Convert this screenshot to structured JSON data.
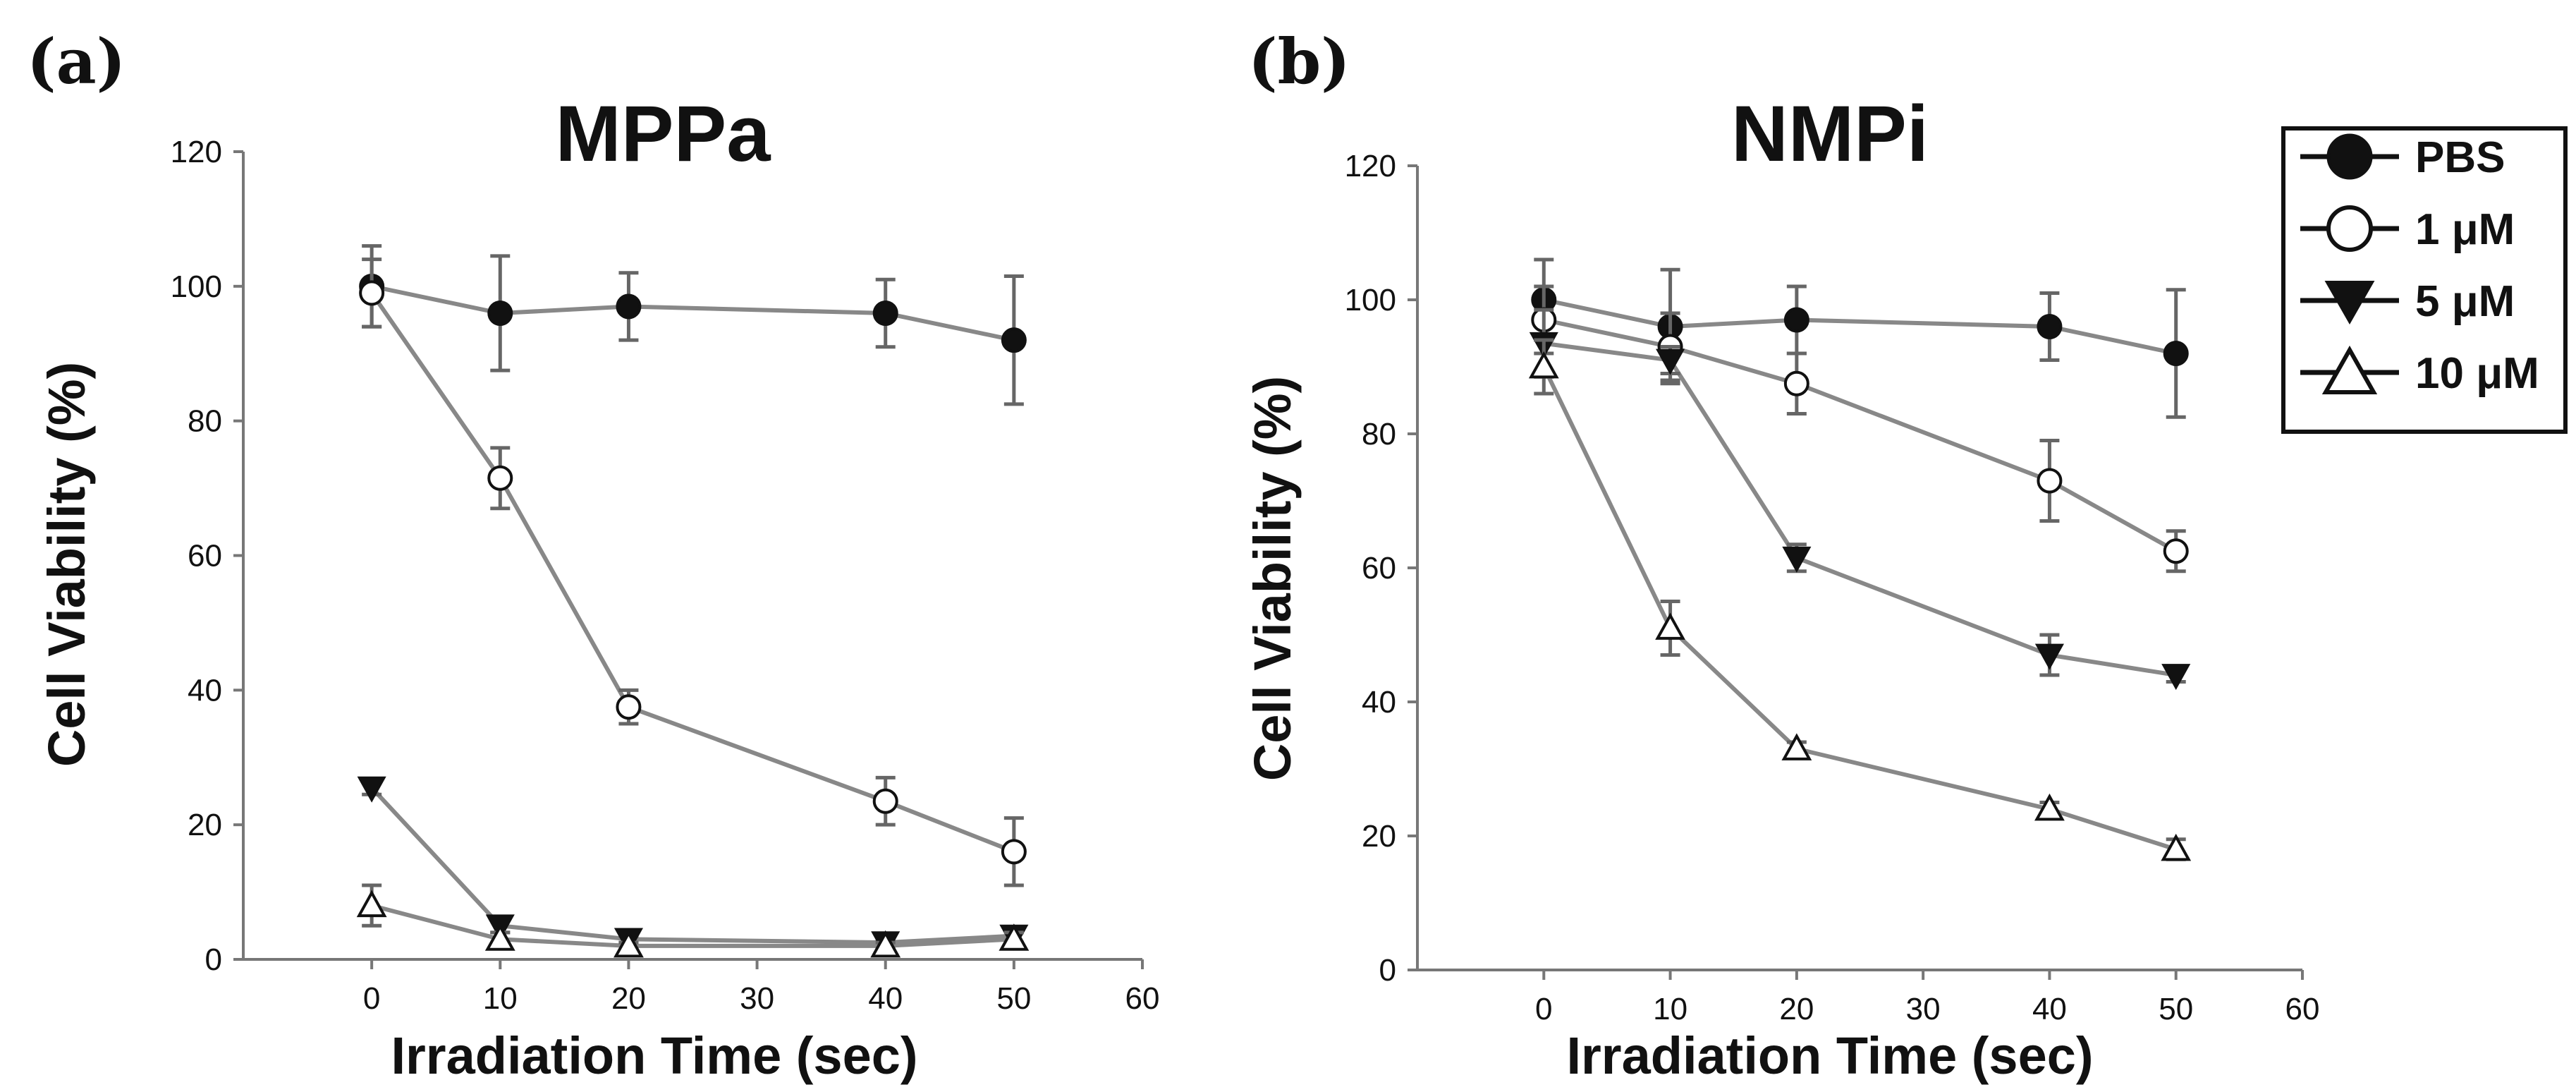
{
  "colors": {
    "axis": "#777777",
    "line": "#888888",
    "marker": "#111111",
    "error": "#666666"
  },
  "legend": {
    "entries": [
      {
        "name": "PBS",
        "marker": "filled-circle"
      },
      {
        "name": "1 μM",
        "marker": "open-circle"
      },
      {
        "name": "5 μM",
        "marker": "filled-triangle-down"
      },
      {
        "name": "10 μM",
        "marker": "open-triangle-up"
      }
    ]
  },
  "chart_data": [
    {
      "panel_label": "(a)",
      "type": "line",
      "title": "MPPa",
      "xlabel": "Irradiation Time (sec)",
      "ylabel": "Cell Viability (%)",
      "xlim": [
        -10,
        60
      ],
      "ylim": [
        0,
        120
      ],
      "xticks": [
        0,
        10,
        20,
        30,
        40,
        50,
        60
      ],
      "yticks": [
        0,
        20,
        40,
        60,
        80,
        100,
        120
      ],
      "x": [
        0,
        10,
        20,
        40,
        50
      ],
      "series": [
        {
          "name": "PBS",
          "marker": "filled-circle",
          "values": [
            100,
            96,
            97,
            96,
            92
          ],
          "errors": [
            6,
            8.5,
            5,
            5,
            9.5
          ]
        },
        {
          "name": "1 μM",
          "marker": "open-circle",
          "values": [
            99,
            71.5,
            37.5,
            23.5,
            16
          ],
          "errors": [
            5,
            4.5,
            2.5,
            3.5,
            5
          ]
        },
        {
          "name": "5 μM",
          "marker": "filled-triangle-down",
          "values": [
            25.5,
            5,
            3,
            2.5,
            3.5
          ],
          "errors": [
            1,
            1,
            0.5,
            0.5,
            1
          ]
        },
        {
          "name": "10 μM",
          "marker": "open-triangle-up",
          "values": [
            8,
            3,
            2,
            2,
            3
          ],
          "errors": [
            3,
            1,
            0.5,
            0.5,
            1
          ]
        }
      ]
    },
    {
      "panel_label": "(b)",
      "type": "line",
      "title": "NMPi",
      "xlabel": "Irradiation Time (sec)",
      "ylabel": "Cell Viability (%)",
      "xlim": [
        -10,
        60
      ],
      "ylim": [
        0,
        120
      ],
      "xticks": [
        0,
        10,
        20,
        30,
        40,
        50,
        60
      ],
      "yticks": [
        0,
        20,
        40,
        60,
        80,
        100,
        120
      ],
      "x": [
        0,
        10,
        20,
        40,
        50
      ],
      "series": [
        {
          "name": "PBS",
          "marker": "filled-circle",
          "values": [
            100,
            96,
            97,
            96,
            92
          ],
          "errors": [
            6,
            8.5,
            5,
            5,
            9.5
          ]
        },
        {
          "name": "1 μM",
          "marker": "open-circle",
          "values": [
            97,
            93,
            87.5,
            73,
            62.5
          ],
          "errors": [
            5,
            5,
            4.5,
            6,
            3
          ]
        },
        {
          "name": "5 μM",
          "marker": "filled-triangle-down",
          "values": [
            93.5,
            91,
            61.5,
            47,
            44
          ],
          "errors": [
            5,
            2,
            2,
            3,
            1
          ]
        },
        {
          "name": "10 μM",
          "marker": "open-triangle-up",
          "values": [
            90,
            51,
            33,
            24,
            18
          ],
          "errors": [
            4,
            4,
            1,
            1,
            1.5
          ]
        }
      ]
    }
  ]
}
